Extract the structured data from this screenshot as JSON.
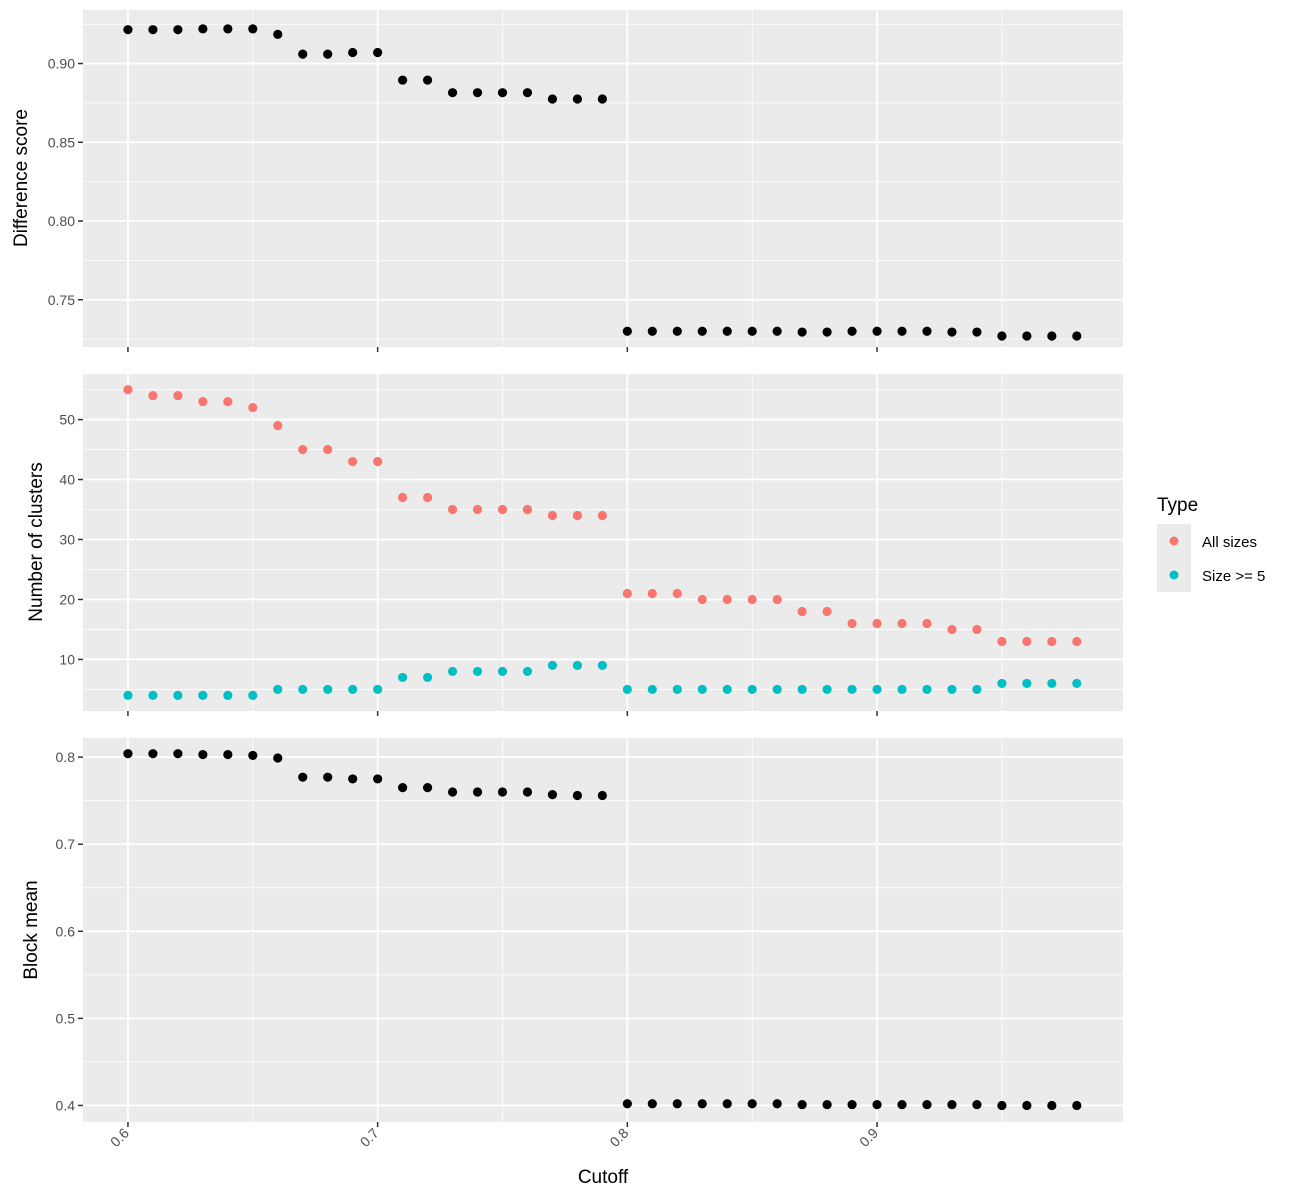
{
  "chart_data": [
    {
      "type": "scatter",
      "ylabel": "Difference score",
      "ylim": [
        0.72,
        0.934
      ],
      "yticks": [
        "0.75",
        "0.80",
        "0.85",
        "0.90"
      ],
      "xlim": [
        0.582,
        0.9985
      ],
      "xticks": [
        "0.6",
        "0.7",
        "0.8",
        "0.9"
      ],
      "show_x_tick_labels": false,
      "grid": true,
      "series": [
        {
          "color": "#000000",
          "x": [
            0.6,
            0.61,
            0.62,
            0.63,
            0.64,
            0.65,
            0.66,
            0.67,
            0.68,
            0.69,
            0.7,
            0.71,
            0.72,
            0.73,
            0.74,
            0.75,
            0.76,
            0.77,
            0.78,
            0.79,
            0.8,
            0.81,
            0.82,
            0.83,
            0.84,
            0.85,
            0.86,
            0.87,
            0.88,
            0.89,
            0.9,
            0.91,
            0.92,
            0.93,
            0.94,
            0.95,
            0.96,
            0.97,
            0.98
          ],
          "y": [
            0.9215,
            0.9215,
            0.9215,
            0.922,
            0.922,
            0.922,
            0.9185,
            0.906,
            0.906,
            0.907,
            0.907,
            0.8895,
            0.8895,
            0.8815,
            0.8815,
            0.8815,
            0.8815,
            0.8775,
            0.8775,
            0.8775,
            0.73,
            0.73,
            0.73,
            0.73,
            0.73,
            0.73,
            0.73,
            0.7295,
            0.7295,
            0.73,
            0.73,
            0.73,
            0.73,
            0.7295,
            0.7295,
            0.727,
            0.727,
            0.727,
            0.727
          ]
        }
      ]
    },
    {
      "type": "scatter",
      "ylabel": "Number of clusters",
      "ylim": [
        1.4,
        57.6
      ],
      "yticks": [
        "10",
        "20",
        "30",
        "40",
        "50"
      ],
      "xlim": [
        0.582,
        0.9985
      ],
      "xticks": [
        "0.6",
        "0.7",
        "0.8",
        "0.9"
      ],
      "show_x_tick_labels": false,
      "grid": true,
      "series": [
        {
          "name": "All sizes",
          "color": "#F8766D",
          "x": [
            0.6,
            0.61,
            0.62,
            0.63,
            0.64,
            0.65,
            0.66,
            0.67,
            0.68,
            0.69,
            0.7,
            0.71,
            0.72,
            0.73,
            0.74,
            0.75,
            0.76,
            0.77,
            0.78,
            0.79,
            0.8,
            0.81,
            0.82,
            0.83,
            0.84,
            0.85,
            0.86,
            0.87,
            0.88,
            0.89,
            0.9,
            0.91,
            0.92,
            0.93,
            0.94,
            0.95,
            0.96,
            0.97,
            0.98
          ],
          "y": [
            55,
            54,
            54,
            53,
            53,
            52,
            49,
            45,
            45,
            43,
            43,
            37,
            37,
            35,
            35,
            35,
            35,
            34,
            34,
            34,
            21,
            21,
            21,
            20,
            20,
            20,
            20,
            18,
            18,
            16,
            16,
            16,
            16,
            15,
            15,
            13,
            13,
            13,
            13
          ]
        },
        {
          "name": "Size >= 5",
          "color": "#00BFC4",
          "x": [
            0.6,
            0.61,
            0.62,
            0.63,
            0.64,
            0.65,
            0.66,
            0.67,
            0.68,
            0.69,
            0.7,
            0.71,
            0.72,
            0.73,
            0.74,
            0.75,
            0.76,
            0.77,
            0.78,
            0.79,
            0.8,
            0.81,
            0.82,
            0.83,
            0.84,
            0.85,
            0.86,
            0.87,
            0.88,
            0.89,
            0.9,
            0.91,
            0.92,
            0.93,
            0.94,
            0.95,
            0.96,
            0.97,
            0.98
          ],
          "y": [
            4,
            4,
            4,
            4,
            4,
            4,
            5,
            5,
            5,
            5,
            5,
            7,
            7,
            8,
            8,
            8,
            8,
            9,
            9,
            9,
            5,
            5,
            5,
            5,
            5,
            5,
            5,
            5,
            5,
            5,
            5,
            5,
            5,
            5,
            5,
            6,
            6,
            6,
            6
          ]
        }
      ]
    },
    {
      "type": "scatter",
      "ylabel": "Block mean",
      "xlabel": "Cutoff",
      "ylim": [
        0.381,
        0.822
      ],
      "yticks": [
        "0.4",
        "0.5",
        "0.6",
        "0.7",
        "0.8"
      ],
      "xlim": [
        0.582,
        0.9985
      ],
      "xticks": [
        "0.6",
        "0.7",
        "0.8",
        "0.9"
      ],
      "show_x_tick_labels": true,
      "grid": true,
      "series": [
        {
          "color": "#000000",
          "x": [
            0.6,
            0.61,
            0.62,
            0.63,
            0.64,
            0.65,
            0.66,
            0.67,
            0.68,
            0.69,
            0.7,
            0.71,
            0.72,
            0.73,
            0.74,
            0.75,
            0.76,
            0.77,
            0.78,
            0.79,
            0.8,
            0.81,
            0.82,
            0.83,
            0.84,
            0.85,
            0.86,
            0.87,
            0.88,
            0.89,
            0.9,
            0.91,
            0.92,
            0.93,
            0.94,
            0.95,
            0.96,
            0.97,
            0.98
          ],
          "y": [
            0.804,
            0.804,
            0.804,
            0.803,
            0.803,
            0.802,
            0.799,
            0.777,
            0.777,
            0.775,
            0.775,
            0.765,
            0.765,
            0.76,
            0.76,
            0.76,
            0.76,
            0.757,
            0.756,
            0.756,
            0.402,
            0.402,
            0.402,
            0.402,
            0.402,
            0.402,
            0.402,
            0.401,
            0.401,
            0.401,
            0.401,
            0.401,
            0.401,
            0.401,
            0.401,
            0.4,
            0.4,
            0.4,
            0.4
          ]
        }
      ]
    }
  ],
  "legend": {
    "title": "Type",
    "items": [
      {
        "label": "All sizes",
        "color": "#F8766D"
      },
      {
        "label": "Size >= 5",
        "color": "#00BFC4"
      }
    ]
  }
}
